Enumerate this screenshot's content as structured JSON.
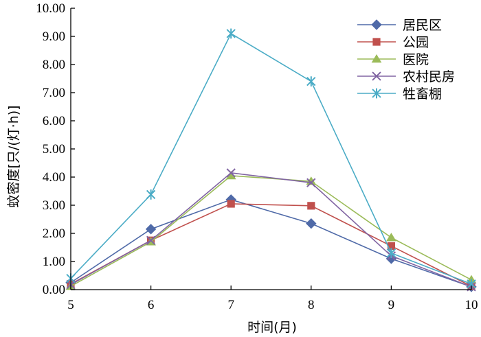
{
  "chart_data": {
    "type": "line",
    "title": "",
    "xlabel": "时间(月)",
    "ylabel": "蚊密度[只/(灯·h)]",
    "x": [
      5,
      6,
      7,
      8,
      9,
      10
    ],
    "x_tick_labels": [
      "5",
      "6",
      "7",
      "8",
      "9",
      "10"
    ],
    "xlim": [
      5,
      10
    ],
    "ylim": [
      0,
      10
    ],
    "y_ticks": [
      0,
      1,
      2,
      3,
      4,
      5,
      6,
      7,
      8,
      9,
      10
    ],
    "y_tick_labels": [
      "0.00",
      "1.00",
      "2.00",
      "3.00",
      "4.00",
      "5.00",
      "6.00",
      "7.00",
      "8.00",
      "9.00",
      "10.00"
    ],
    "grid": false,
    "legend_position": "top-right",
    "series": [
      {
        "name": "居民区",
        "values": [
          0.25,
          2.15,
          3.2,
          2.35,
          1.1,
          0.1
        ],
        "color": "#4f6aa8",
        "marker": "diamond"
      },
      {
        "name": "公园",
        "values": [
          0.2,
          1.75,
          3.05,
          2.98,
          1.55,
          0.12
        ],
        "color": "#c0504d",
        "marker": "square"
      },
      {
        "name": "医院",
        "values": [
          0.12,
          1.7,
          4.05,
          3.85,
          1.85,
          0.35
        ],
        "color": "#9bbb59",
        "marker": "triangle"
      },
      {
        "name": "农村民房",
        "values": [
          0.18,
          1.75,
          4.15,
          3.8,
          1.2,
          0.1
        ],
        "color": "#8064a2",
        "marker": "x"
      },
      {
        "name": "牲畜棚",
        "values": [
          0.4,
          3.38,
          9.1,
          7.4,
          1.3,
          0.2
        ],
        "color": "#4bacc6",
        "marker": "star"
      }
    ]
  }
}
